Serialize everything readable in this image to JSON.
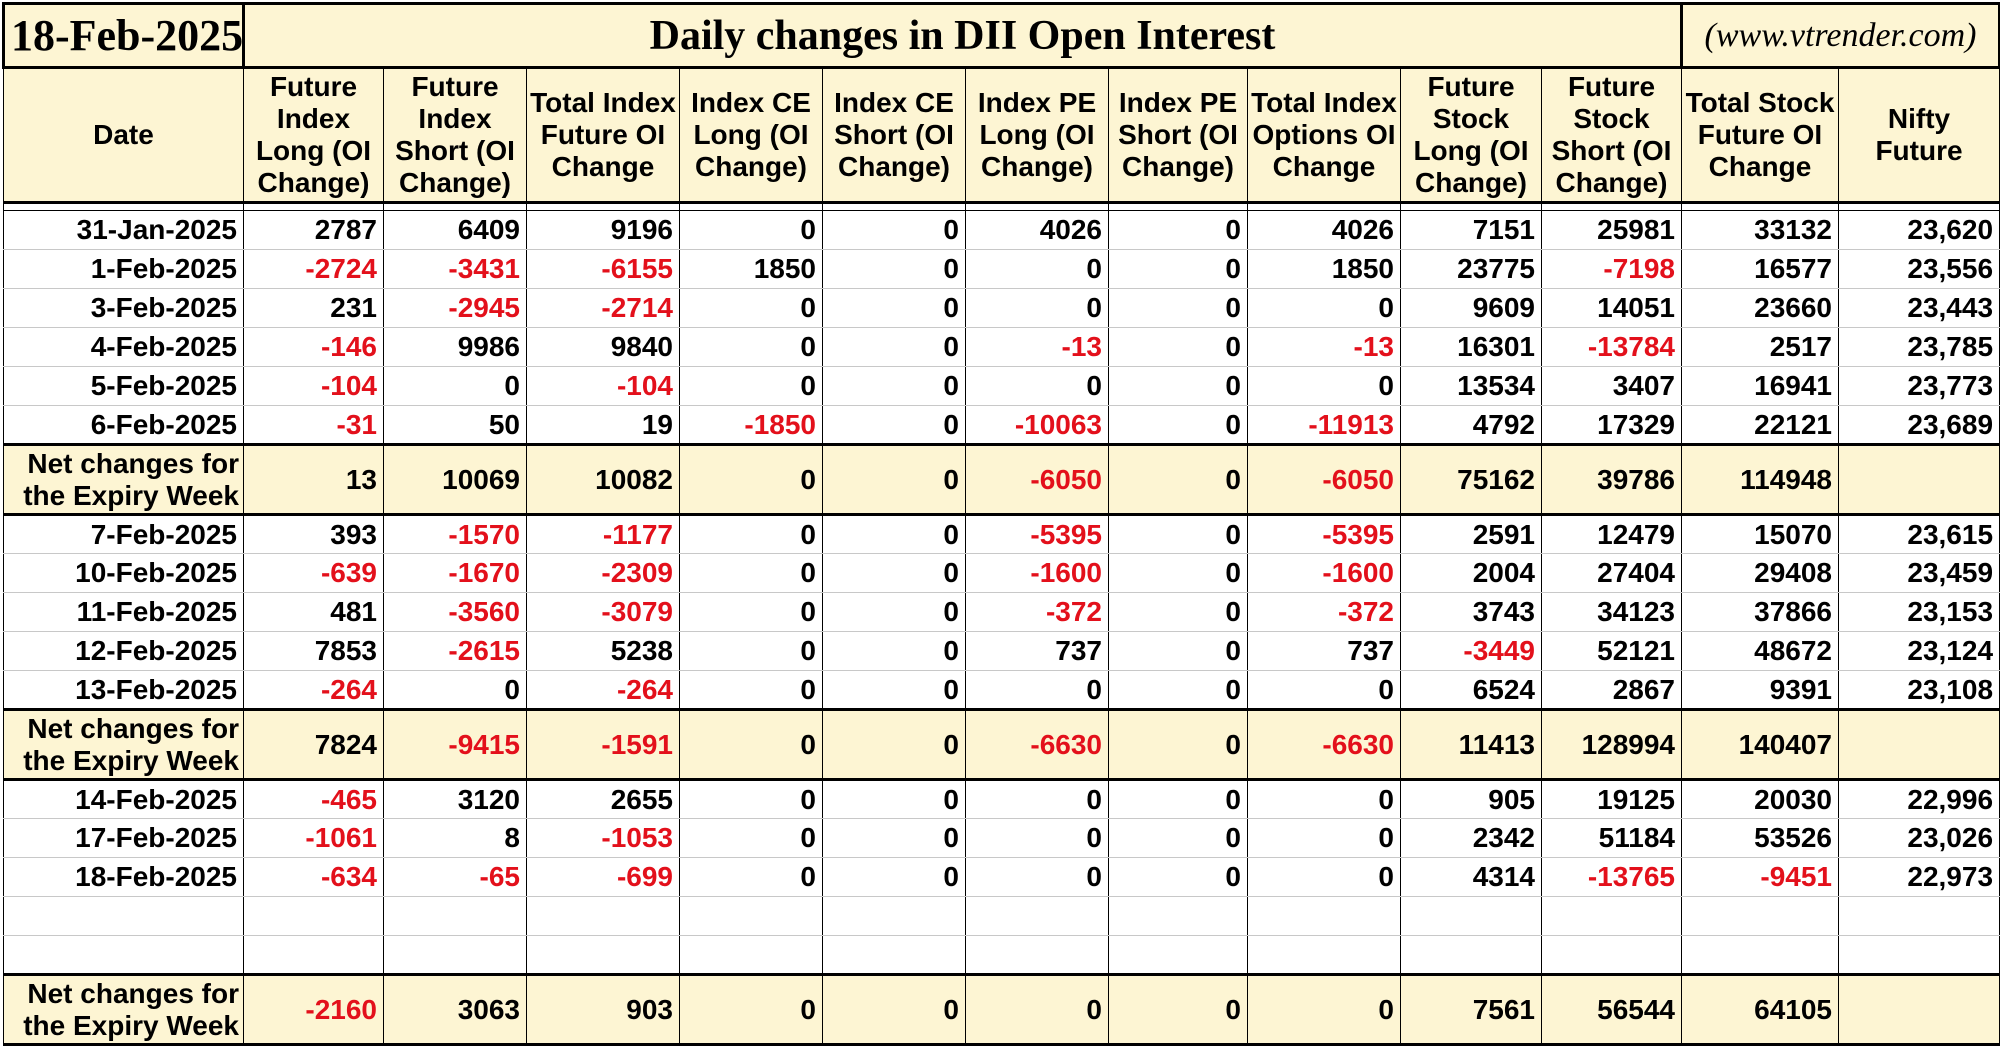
{
  "header": {
    "date": "18-Feb-2025",
    "title": "Daily changes in DII Open Interest",
    "source": "(www.vtrender.com)"
  },
  "columns": [
    "Date",
    "Future Index Long (OI Change)",
    "Future Index Short (OI Change)",
    "Total Index Future OI Change",
    "Index CE Long (OI Change)",
    "Index CE Short (OI Change)",
    "Index PE Long (OI Change)",
    "Index PE Short (OI Change)",
    "Total Index Options OI Change",
    "Future Stock Long (OI Change)",
    "Future Stock Short (OI Change)",
    "Total Stock Future OI Change",
    "Nifty Future"
  ],
  "net_label": "Net changes for the Expiry Week",
  "weeks": [
    {
      "rows": [
        [
          "31-Jan-2025",
          "2787",
          "6409",
          "9196",
          "0",
          "0",
          "4026",
          "0",
          "4026",
          "7151",
          "25981",
          "33132",
          "23,620"
        ],
        [
          "1-Feb-2025",
          "-2724",
          "-3431",
          "-6155",
          "1850",
          "0",
          "0",
          "0",
          "1850",
          "23775",
          "-7198",
          "16577",
          "23,556"
        ],
        [
          "3-Feb-2025",
          "231",
          "-2945",
          "-2714",
          "0",
          "0",
          "0",
          "0",
          "0",
          "9609",
          "14051",
          "23660",
          "23,443"
        ],
        [
          "4-Feb-2025",
          "-146",
          "9986",
          "9840",
          "0",
          "0",
          "-13",
          "0",
          "-13",
          "16301",
          "-13784",
          "2517",
          "23,785"
        ],
        [
          "5-Feb-2025",
          "-104",
          "0",
          "-104",
          "0",
          "0",
          "0",
          "0",
          "0",
          "13534",
          "3407",
          "16941",
          "23,773"
        ],
        [
          "6-Feb-2025",
          "-31",
          "50",
          "19",
          "-1850",
          "0",
          "-10063",
          "0",
          "-11913",
          "4792",
          "17329",
          "22121",
          "23,689"
        ]
      ],
      "net": [
        "13",
        "10069",
        "10082",
        "0",
        "0",
        "-6050",
        "0",
        "-6050",
        "75162",
        "39786",
        "114948",
        ""
      ]
    },
    {
      "rows": [
        [
          "7-Feb-2025",
          "393",
          "-1570",
          "-1177",
          "0",
          "0",
          "-5395",
          "0",
          "-5395",
          "2591",
          "12479",
          "15070",
          "23,615"
        ],
        [
          "10-Feb-2025",
          "-639",
          "-1670",
          "-2309",
          "0",
          "0",
          "-1600",
          "0",
          "-1600",
          "2004",
          "27404",
          "29408",
          "23,459"
        ],
        [
          "11-Feb-2025",
          "481",
          "-3560",
          "-3079",
          "0",
          "0",
          "-372",
          "0",
          "-372",
          "3743",
          "34123",
          "37866",
          "23,153"
        ],
        [
          "12-Feb-2025",
          "7853",
          "-2615",
          "5238",
          "0",
          "0",
          "737",
          "0",
          "737",
          "-3449",
          "52121",
          "48672",
          "23,124"
        ],
        [
          "13-Feb-2025",
          "-264",
          "0",
          "-264",
          "0",
          "0",
          "0",
          "0",
          "0",
          "6524",
          "2867",
          "9391",
          "23,108"
        ]
      ],
      "net": [
        "7824",
        "-9415",
        "-1591",
        "0",
        "0",
        "-6630",
        "0",
        "-6630",
        "11413",
        "128994",
        "140407",
        ""
      ]
    },
    {
      "rows": [
        [
          "14-Feb-2025",
          "-465",
          "3120",
          "2655",
          "0",
          "0",
          "0",
          "0",
          "0",
          "905",
          "19125",
          "20030",
          "22,996"
        ],
        [
          "17-Feb-2025",
          "-1061",
          "8",
          "-1053",
          "0",
          "0",
          "0",
          "0",
          "0",
          "2342",
          "51184",
          "53526",
          "23,026"
        ],
        [
          "18-Feb-2025",
          "-634",
          "-65",
          "-699",
          "0",
          "0",
          "0",
          "0",
          "0",
          "4314",
          "-13765",
          "-9451",
          "22,973"
        ]
      ],
      "blank_rows": 2,
      "net": [
        "-2160",
        "3063",
        "903",
        "0",
        "0",
        "0",
        "0",
        "0",
        "7561",
        "56544",
        "64105",
        ""
      ]
    }
  ],
  "colors": {
    "header_bg": "#fdf5d3",
    "negative": "#e3101b",
    "border": "#000000"
  }
}
